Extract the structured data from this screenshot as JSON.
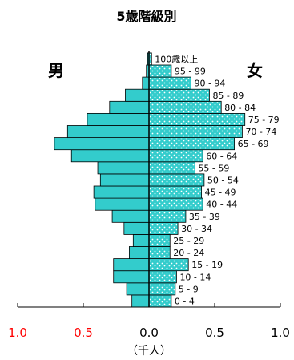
{
  "chart_data": {
    "type": "bar",
    "title": "5歳階級別",
    "unit_label": "（千人）",
    "series": [
      {
        "name": "男",
        "values": [
          0.13,
          0.17,
          0.27,
          0.27,
          0.15,
          0.12,
          0.19,
          0.28,
          0.41,
          0.42,
          0.37,
          0.39,
          0.59,
          0.72,
          0.62,
          0.47,
          0.3,
          0.18,
          0.05,
          0.02,
          0.01
        ]
      },
      {
        "name": "女",
        "values": [
          0.17,
          0.2,
          0.21,
          0.3,
          0.16,
          0.16,
          0.22,
          0.28,
          0.41,
          0.4,
          0.42,
          0.35,
          0.41,
          0.65,
          0.71,
          0.73,
          0.55,
          0.46,
          0.32,
          0.17,
          0.02
        ]
      }
    ],
    "age_labels": [
      "0 - 4",
      "5 - 9",
      "10 - 14",
      "15 - 19",
      "20 - 24",
      "25 - 29",
      "30 - 34",
      "35 - 39",
      "40 - 44",
      "45 - 49",
      "50 - 54",
      "55 - 59",
      "60 - 64",
      "65 - 69",
      "70 - 74",
      "75 - 79",
      "80 - 84",
      "85 - 89",
      "90 - 94",
      "95 - 99",
      "100歳以上"
    ],
    "x_tick_labels": [
      "1.0",
      "0.5",
      "0.0",
      "0.5",
      "1.0"
    ],
    "x_ticks": [
      -1.0,
      -0.5,
      0.0,
      0.5,
      1.0
    ],
    "xlim": [
      -1.0,
      1.0
    ],
    "colors": {
      "male": "#33cccc",
      "female": "#33cccc",
      "male_tick_labels": "#ff0000",
      "female_tick_labels": "#000000",
      "outline": "#000000"
    }
  }
}
